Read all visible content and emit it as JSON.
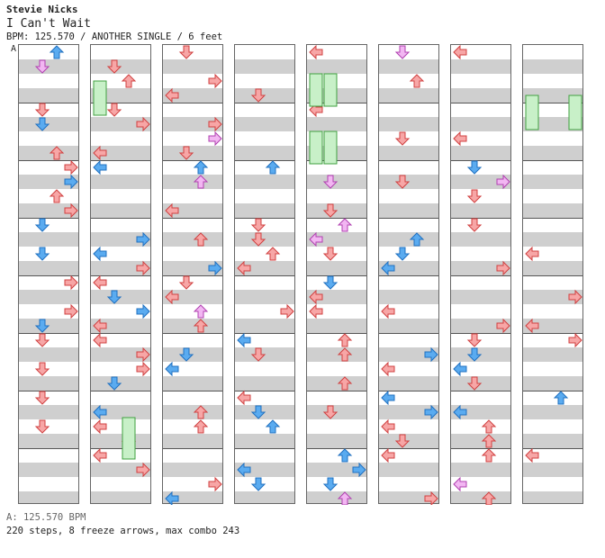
{
  "song": {
    "artist": "Stevie Nicks",
    "title": "I Can't Wait",
    "bpm_line": "BPM: 125.570 / ANOTHER SINGLE / 6 feet",
    "section_marker": "A"
  },
  "footer": {
    "bpm_change": "A: 125.570 BPM",
    "stats": "220 steps, 8 freeze arrows, max combo 243"
  },
  "colors": {
    "red_note": "#f7a6a6",
    "red_stroke": "#d04040",
    "blue_note": "#5aabf0",
    "blue_stroke": "#2070c0",
    "purple_note": "#f2b6f2",
    "purple_stroke": "#b040b0",
    "freeze": "#c8f0c8",
    "freeze_stroke": "#40a040"
  },
  "chart_columns": [
    {
      "notes": []
    },
    {
      "notes": []
    },
    {
      "notes": []
    },
    {
      "notes": []
    },
    {
      "notes": []
    },
    {
      "notes": []
    },
    {
      "notes": []
    },
    {
      "notes": []
    }
  ]
}
